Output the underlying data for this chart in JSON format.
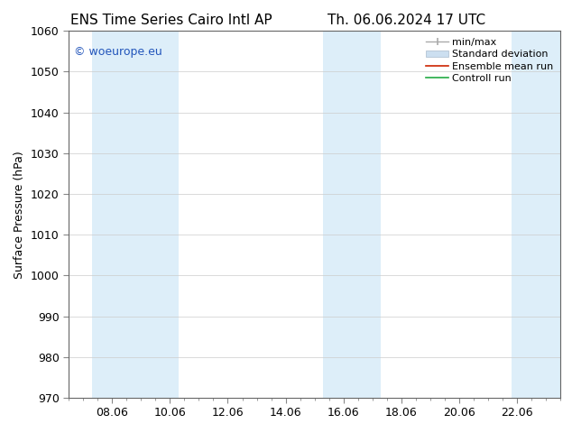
{
  "title_left": "ENS Time Series Cairo Intl AP",
  "title_right": "Th. 06.06.2024 17 UTC",
  "ylabel": "Surface Pressure (hPa)",
  "ylim": [
    970,
    1060
  ],
  "yticks": [
    970,
    980,
    990,
    1000,
    1010,
    1020,
    1030,
    1040,
    1050,
    1060
  ],
  "xtick_positions": [
    8,
    10,
    12,
    14,
    16,
    18,
    20,
    22
  ],
  "xtick_labels": [
    "08.06",
    "10.06",
    "12.06",
    "14.06",
    "16.06",
    "18.06",
    "20.06",
    "22.06"
  ],
  "xlim": [
    6.5,
    23.5
  ],
  "shaded_bands": [
    {
      "x_start": 7.3,
      "x_end": 10.3
    },
    {
      "x_start": 15.3,
      "x_end": 17.3
    },
    {
      "x_start": 21.8,
      "x_end": 23.5
    }
  ],
  "band_color": "#ddeef9",
  "background_color": "#ffffff",
  "watermark_text": "© woeurope.eu",
  "watermark_color": "#2255bb",
  "title_fontsize": 11,
  "tick_fontsize": 9,
  "ylabel_fontsize": 9,
  "watermark_fontsize": 9,
  "legend_fontsize": 8
}
